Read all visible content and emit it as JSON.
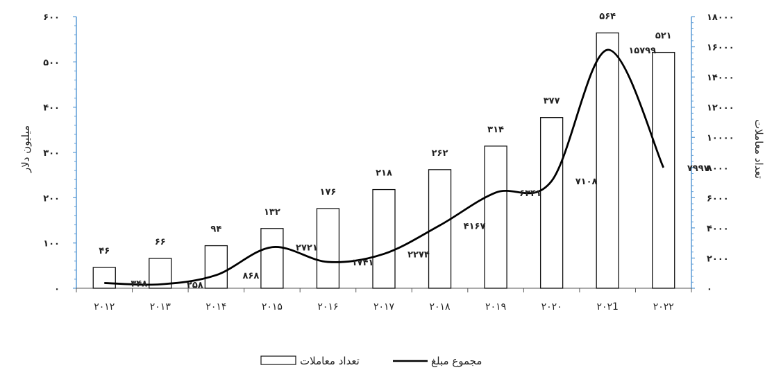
{
  "chart_data": {
    "type": "bar",
    "categories": [
      "۲۰۱۲",
      "۲۰۱۳",
      "۲۰۱۴",
      "۲۰۱۵",
      "۲۰۱۶",
      "۲۰۱۷",
      "۲۰۱۸",
      "۲۰۱۹",
      "۲۰۲۰",
      "۲۰۲1",
      "۲۰۲۲"
    ],
    "series": [
      {
        "name": "تعداد معاملات",
        "type": "bar",
        "axis": "left",
        "values": [
          46,
          66,
          94,
          132,
          176,
          218,
          262,
          314,
          377,
          564,
          521
        ],
        "labels": [
          "۴۶",
          "۶۶",
          "۹۴",
          "۱۳۲",
          "۱۷۶",
          "۲۱۸",
          "۲۶۲",
          "۳۱۴",
          "۳۷۷",
          "۵۶۴",
          "۵۲۱"
        ]
      },
      {
        "name": "مجموع مبلغ",
        "type": "line",
        "axis": "right",
        "values": [
          348,
          258,
          868,
          2721,
          1741,
          2274,
          4167,
          6341,
          7108,
          15799,
          7997
        ],
        "labels": [
          "۳۴۸",
          "۲۵۸",
          "۸۶۸",
          "۲۷۲۱",
          "۱۷۴۱",
          "۲۲۷۴",
          "۴۱۶۷",
          "۶۳۴۱",
          "۷۱۰۸",
          "۱۵۷۹۹",
          "۷۹۹۷"
        ]
      }
    ],
    "y_left": {
      "label": "میلیون دلار",
      "min": 0,
      "max": 600,
      "ticks": [
        0,
        100,
        200,
        300,
        400,
        500,
        600
      ],
      "tick_labels": [
        "۰",
        "۱۰۰",
        "۲۰۰",
        "۳۰۰",
        "۴۰۰",
        "۵۰۰",
        "۶۰۰"
      ]
    },
    "y_right": {
      "label": "تعداد معاملات",
      "min": 0,
      "max": 18000,
      "ticks": [
        0,
        2000,
        4000,
        6000,
        8000,
        10000,
        12000,
        14000,
        16000,
        18000
      ],
      "tick_labels": [
        "۰",
        "۲۰۰۰",
        "۴۰۰۰",
        "۶۰۰۰",
        "۸۰۰۰",
        "۱۰۰۰۰",
        "۱۲۰۰۰",
        "۱۴۰۰۰",
        "۱۶۰۰۰",
        "۱۸۰۰۰"
      ]
    },
    "grid": false,
    "legend": "bottom-center"
  },
  "colors": {
    "axis_line": "#5b9bd5",
    "bar_fill": "#ffffff",
    "bar_stroke": "#111111",
    "line": "#000000"
  }
}
